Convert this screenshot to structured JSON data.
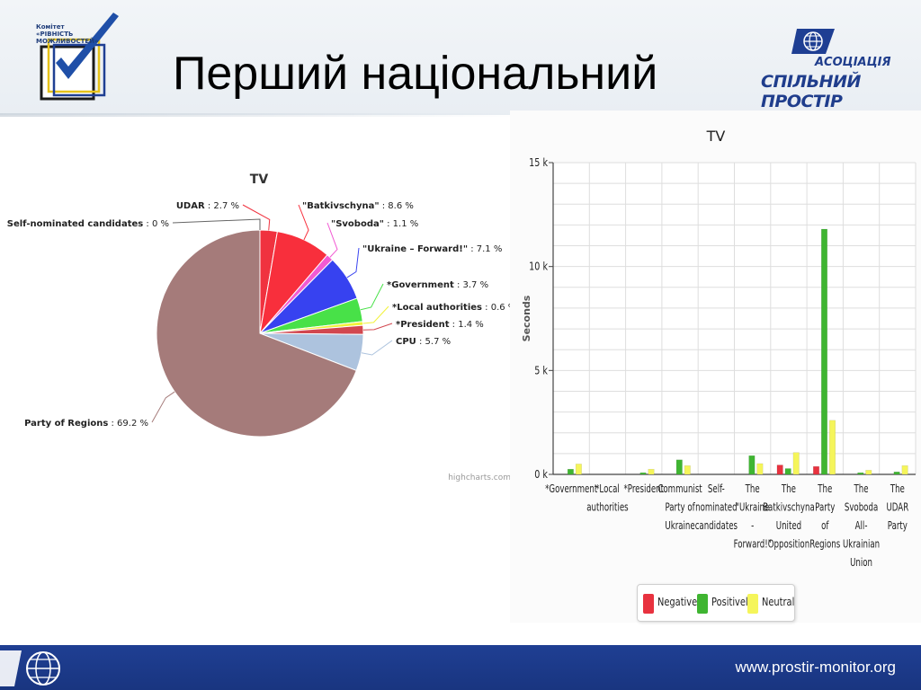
{
  "header": {
    "title": "Перший національний",
    "logo_left_text": "Комітет «РІВНІСТЬ МОЖЛИВОСТЕЙ»",
    "logo_right_line1": "АСОЦІАЦІЯ",
    "logo_right_line2": "СПІЛЬНИЙ ПРОСТІР"
  },
  "footer": {
    "url": "www.prostir-monitor.org"
  },
  "colors": {
    "negatively": "#e8323f",
    "positively": "#3fb531",
    "neutral": "#f5f55a",
    "footer": "#1f3f93"
  },
  "chart_data": [
    {
      "type": "pie",
      "title": "TV",
      "credit": "highcharts.com",
      "slices": [
        {
          "label": "UDAR",
          "value": 2.7,
          "display": "2.7 %",
          "color": "#f0323f"
        },
        {
          "label": "\"Batkivschyna\"",
          "value": 8.6,
          "display": "8.6 %",
          "color": "#f82f3c"
        },
        {
          "label": "\"Svoboda\"",
          "value": 1.1,
          "display": "1.1 %",
          "color": "#f25ad3"
        },
        {
          "label": "\"Ukraine – Forward!\"",
          "value": 7.1,
          "display": "7.1 %",
          "color": "#3742f0"
        },
        {
          "label": "*Government",
          "value": 3.7,
          "display": "3.7 %",
          "color": "#48e148"
        },
        {
          "label": "*Local authorities",
          "value": 0.6,
          "display": "0.6 %",
          "color": "#f2f23a"
        },
        {
          "label": "*President",
          "value": 1.4,
          "display": "1.4 %",
          "color": "#d2474f"
        },
        {
          "label": "CPU",
          "value": 5.7,
          "display": "5.7 %",
          "color": "#adc3de"
        },
        {
          "label": "Party of Regions",
          "value": 69.2,
          "display": "69.2 %",
          "color": "#a57b7a"
        },
        {
          "label": "Self-nominated candidates",
          "value": 0,
          "display": "0 %",
          "color": "#888888"
        }
      ]
    },
    {
      "type": "bar",
      "title": "TV",
      "ylabel": "Seconds",
      "ylim": [
        0,
        15000
      ],
      "yticks": [
        {
          "value": 0,
          "label": "0 k"
        },
        {
          "value": 5000,
          "label": "5 k"
        },
        {
          "value": 10000,
          "label": "10 k"
        },
        {
          "value": 15000,
          "label": "15 k"
        }
      ],
      "categories": [
        [
          "*Government"
        ],
        [
          "*Local",
          "authorities"
        ],
        [
          "*President"
        ],
        [
          "Communist",
          "Party of",
          "Ukraine"
        ],
        [
          "Self-",
          "nominated",
          "candidates"
        ],
        [
          "The",
          "\"Ukraine",
          "-",
          "Forward!\""
        ],
        [
          "The",
          "Batkivschyna",
          "United",
          "Opposition"
        ],
        [
          "The",
          "Party",
          "of",
          "Regions"
        ],
        [
          "The",
          "Svoboda",
          "All-",
          "Ukrainian",
          "Union"
        ],
        [
          "The",
          "UDAR",
          "Party"
        ]
      ],
      "series": [
        {
          "name": "Negatively",
          "color": "#e8323f",
          "values": [
            0,
            0,
            0,
            0,
            0,
            0,
            450,
            380,
            0,
            0
          ]
        },
        {
          "name": "Positively",
          "color": "#3fb531",
          "values": [
            250,
            0,
            80,
            700,
            0,
            900,
            280,
            11800,
            80,
            120
          ]
        },
        {
          "name": "Neutral",
          "color": "#f5f55a",
          "values": [
            500,
            0,
            250,
            420,
            0,
            520,
            1050,
            2600,
            200,
            420
          ]
        }
      ]
    }
  ]
}
